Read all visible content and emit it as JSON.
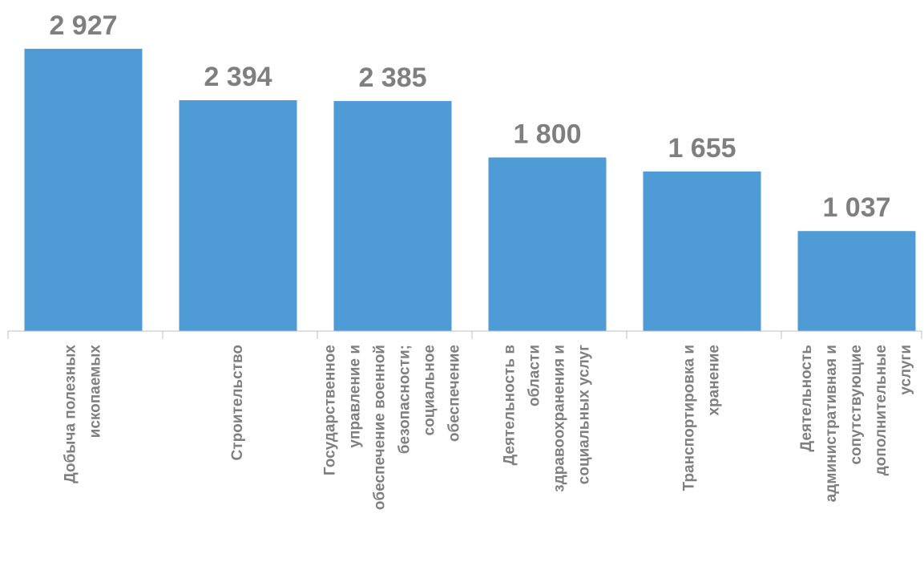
{
  "chart_data": {
    "type": "bar",
    "categories": [
      [
        "Добыча полезных",
        "ископаемых"
      ],
      [
        "Строительство"
      ],
      [
        "Государственное",
        "управление и",
        "обеспечение военной",
        "безопасности;",
        "социальное",
        "обеспечение"
      ],
      [
        "Деятельность в",
        "области",
        "здравоохранения и",
        "социальных услуг"
      ],
      [
        "Транспортировка и",
        "хранение"
      ],
      [
        "Деятельность",
        "административная и",
        "сопутствующие",
        "дополнительные",
        "услуги"
      ]
    ],
    "values": [
      2927,
      2394,
      2385,
      1800,
      1655,
      1037
    ],
    "value_labels": [
      "2 927",
      "2 394",
      "2 385",
      "1 800",
      "1 655",
      "1 037"
    ],
    "color": "#4f9bd5",
    "ylim": [
      0,
      3200
    ]
  }
}
